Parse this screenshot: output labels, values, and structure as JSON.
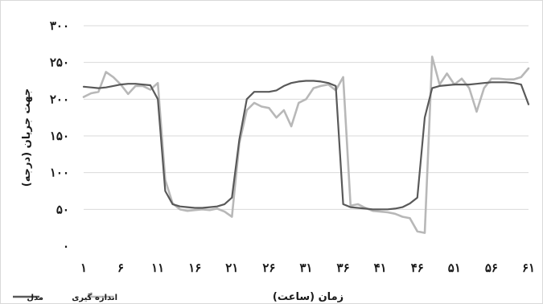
{
  "chart_data": {
    "type": "line",
    "xlabel": "زمان (ساعت)",
    "ylabel": "جهت جریان (درجه)",
    "ylim": [
      0,
      300
    ],
    "xlim": [
      1,
      61
    ],
    "y_ticks": [
      0,
      50,
      100,
      150,
      200,
      250,
      300
    ],
    "y_tick_labels": [
      "۰",
      "۵۰",
      "۱۰۰",
      "۱۵۰",
      "۲۰۰",
      "۲۵۰",
      "۳۰۰"
    ],
    "x_ticks": [
      1,
      6,
      11,
      16,
      21,
      26,
      31,
      36,
      41,
      46,
      51,
      56,
      61
    ],
    "x_tick_labels": [
      "۱",
      "۶",
      "۱۱",
      "۱۶",
      "۲۱",
      "۲۶",
      "۳۱",
      "۳۶",
      "۴۱",
      "۴۶",
      "۵۱",
      "۵۶",
      "۶۱"
    ],
    "grid": "horizontal",
    "legend_position": "bottom-left",
    "series": [
      {
        "name": "مدل",
        "color": "#595959",
        "x": [
          1,
          2,
          3,
          4,
          5,
          6,
          7,
          8,
          9,
          10,
          11,
          12,
          13,
          14,
          15,
          16,
          17,
          18,
          19,
          20,
          21,
          22,
          23,
          24,
          25,
          26,
          27,
          28,
          29,
          30,
          31,
          32,
          33,
          34,
          35,
          36,
          37,
          38,
          39,
          40,
          41,
          42,
          43,
          44,
          45,
          46,
          47,
          48,
          49,
          50,
          51,
          52,
          53,
          54,
          55,
          56,
          57,
          58,
          59,
          60,
          61
        ],
        "values": [
          217,
          216,
          215,
          216,
          218,
          220,
          221,
          221,
          220,
          219,
          200,
          75,
          57,
          54,
          53,
          52,
          52,
          53,
          54,
          57,
          66,
          145,
          200,
          210,
          210,
          210,
          212,
          218,
          222,
          224,
          225,
          225,
          224,
          222,
          218,
          57,
          53,
          52,
          51,
          50,
          50,
          50,
          51,
          53,
          58,
          66,
          175,
          215,
          218,
          219,
          220,
          220,
          220,
          221,
          222,
          223,
          223,
          223,
          222,
          220,
          193
        ]
      },
      {
        "name": "اندازه گیری",
        "color": "#b8b8b8",
        "x": [
          1,
          2,
          3,
          4,
          5,
          6,
          7,
          8,
          9,
          10,
          11,
          12,
          13,
          14,
          15,
          16,
          17,
          18,
          19,
          20,
          21,
          22,
          23,
          24,
          25,
          26,
          27,
          28,
          29,
          30,
          31,
          32,
          33,
          34,
          35,
          36,
          37,
          38,
          39,
          40,
          41,
          42,
          43,
          44,
          45,
          46,
          47,
          48,
          49,
          50,
          51,
          52,
          53,
          54,
          55,
          56,
          57,
          58,
          59,
          60,
          61
        ],
        "values": [
          203,
          208,
          210,
          237,
          230,
          220,
          207,
          218,
          218,
          213,
          222,
          90,
          58,
          50,
          48,
          49,
          50,
          49,
          51,
          47,
          40,
          140,
          185,
          195,
          190,
          188,
          175,
          185,
          163,
          195,
          200,
          215,
          218,
          220,
          212,
          230,
          55,
          57,
          52,
          48,
          47,
          46,
          44,
          40,
          38,
          20,
          18,
          258,
          220,
          235,
          220,
          228,
          215,
          183,
          215,
          228,
          228,
          227,
          227,
          230,
          242
        ]
      }
    ]
  }
}
